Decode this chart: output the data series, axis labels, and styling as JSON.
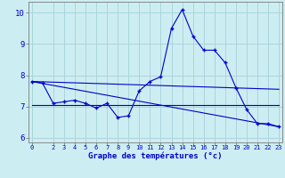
{
  "xlabel": "Graphe des températures (°c)",
  "background_color": "#cceef2",
  "grid_color": "#aad4da",
  "line_color": "#0000cc",
  "x_ticks": [
    0,
    2,
    3,
    4,
    5,
    6,
    7,
    8,
    9,
    10,
    11,
    12,
    13,
    14,
    15,
    16,
    17,
    18,
    19,
    20,
    21,
    22,
    23
  ],
  "ylim": [
    5.85,
    10.35
  ],
  "yticks": [
    6,
    7,
    8,
    9,
    10
  ],
  "series1": {
    "x": [
      0,
      1,
      2,
      3,
      4,
      5,
      6,
      7,
      8,
      9,
      10,
      11,
      12,
      13,
      14,
      15,
      16,
      17,
      18,
      19,
      20,
      21,
      22,
      23
    ],
    "y": [
      7.8,
      7.75,
      7.1,
      7.15,
      7.2,
      7.1,
      6.95,
      7.1,
      6.65,
      6.7,
      7.5,
      7.8,
      7.95,
      9.5,
      10.1,
      9.25,
      8.8,
      8.8,
      8.4,
      7.6,
      6.9,
      6.45,
      6.45,
      6.35
    ]
  },
  "linear1": {
    "x": [
      0,
      23
    ],
    "y": [
      7.8,
      7.55
    ]
  },
  "linear2": {
    "x": [
      0,
      23
    ],
    "y": [
      7.8,
      6.35
    ]
  },
  "linear3": {
    "x": [
      0,
      23
    ],
    "y": [
      7.05,
      7.05
    ]
  }
}
